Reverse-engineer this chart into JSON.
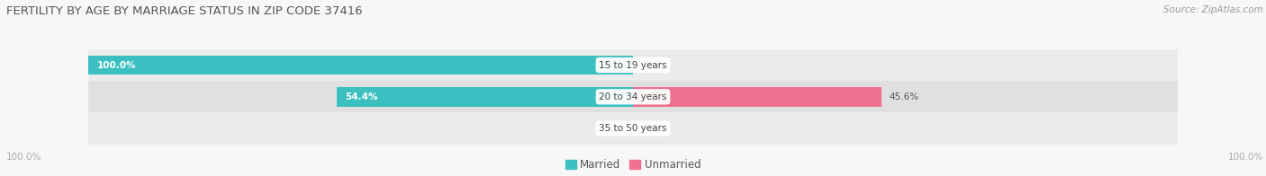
{
  "title": "FERTILITY BY AGE BY MARRIAGE STATUS IN ZIP CODE 37416",
  "source": "Source: ZipAtlas.com",
  "age_groups": [
    "15 to 19 years",
    "20 to 34 years",
    "35 to 50 years"
  ],
  "married_pct": [
    100.0,
    54.4,
    0.0
  ],
  "unmarried_pct": [
    0.0,
    45.6,
    0.0
  ],
  "married_color": "#3bbfc0",
  "unmarried_color": "#f07090",
  "row_bg_color_odd": "#ebebeb",
  "row_bg_color_even": "#e0e0e0",
  "fig_bg_color": "#f7f7f7",
  "label_color": "#555555",
  "title_color": "#555555",
  "source_color": "#999999",
  "axis_label_color": "#aaaaaa",
  "x_axis_left_label": "100.0%",
  "x_axis_right_label": "100.0%",
  "figsize": [
    14.06,
    1.96
  ],
  "dpi": 100
}
